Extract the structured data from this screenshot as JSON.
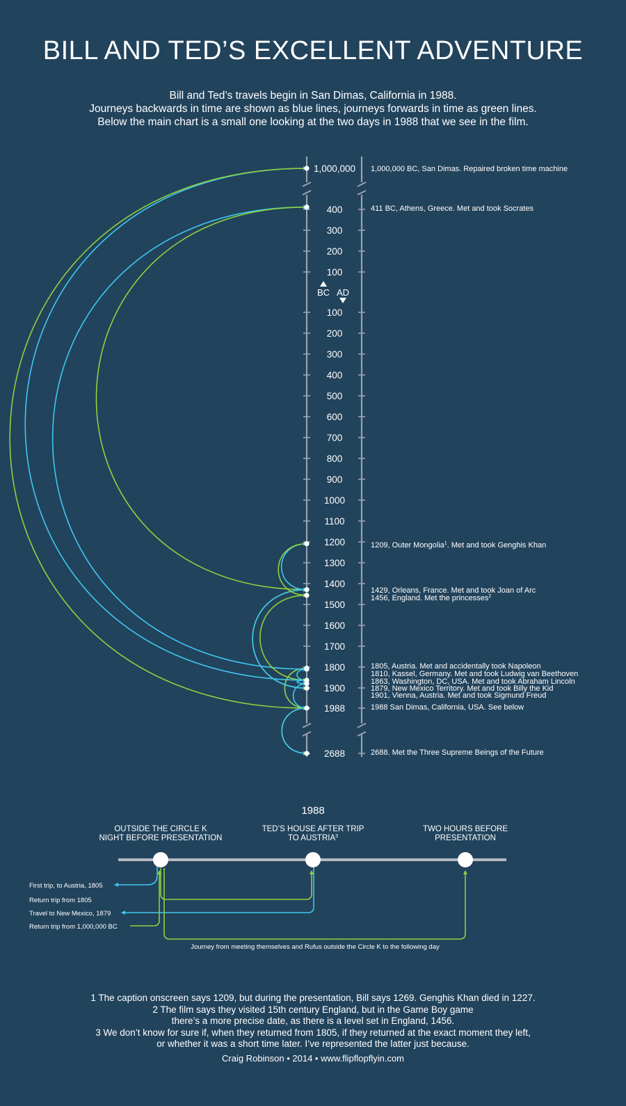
{
  "title": "BILL AND TED’S EXCELLENT ADVENTURE",
  "intro": [
    "Bill and Ted’s travels begin in San Dimas, California in 1988.",
    "Journeys backwards in time are shown as blue lines, journeys forwards in time as green lines.",
    "Below the main chart is a small one looking at the two days in 1988 that we see in the film."
  ],
  "colors": {
    "background": "#22435c",
    "backwards": "#3ec8f0",
    "forwards": "#8fd13f",
    "axis": "#9aa2b0"
  },
  "axis": {
    "top_label": "1,000,000",
    "bc_ticks": [
      "400",
      "300",
      "200",
      "100"
    ],
    "bc_label": "BC",
    "ad_label": "AD",
    "ad_ticks": [
      "100",
      "200",
      "300",
      "400",
      "500",
      "600",
      "700",
      "800",
      "900",
      "1000",
      "1100",
      "1200",
      "1300",
      "1400",
      "1500",
      "1600",
      "1700",
      "1800",
      "1900",
      "1988"
    ],
    "future_label": "2688"
  },
  "stops": [
    {
      "year": -1000000,
      "text": "1,000,000 BC, San Dimas. Repaired broken time machine"
    },
    {
      "year": -411,
      "text": "411 BC, Athens, Greece. Met and took Socrates"
    },
    {
      "year": 1209,
      "text": "1209, Outer Mongolia",
      "note": "1",
      "text2": ". Met and took Genghis Khan"
    },
    {
      "year": 1429,
      "text": "1429, Orleans, France. Met and took Joan of Arc"
    },
    {
      "year": 1456,
      "text": "1456, England. Met the princesses",
      "note": "2"
    },
    {
      "year": 1805,
      "text": "1805, Austria. Met and accidentally took Napoleon"
    },
    {
      "year": 1810,
      "text": "1810, Kassel, Germany. Met and took Ludwig van Beethoven"
    },
    {
      "year": 1863,
      "text": "1863, Washington, DC, USA. Met and took Abraham Lincoln"
    },
    {
      "year": 1879,
      "text": "1879, New Mexico Territory. Met and took Billy the Kid"
    },
    {
      "year": 1901,
      "text": "1901, Vienna, Austria. Met and took Sigmund Freud"
    },
    {
      "year": 1988,
      "text": "1988 San Dimas, California, USA. See below"
    },
    {
      "year": 2688,
      "text": "2688. Met the Three Supreme Beings of the Future"
    }
  ],
  "journeys": [
    {
      "from": 1988,
      "to": 1805,
      "direction": "backwards"
    },
    {
      "from": 1805,
      "to": 1988,
      "direction": "forwards"
    },
    {
      "from": 1988,
      "to": 1879,
      "direction": "backwards"
    },
    {
      "from": 1879,
      "to": 1863,
      "direction": "backwards"
    },
    {
      "from": 1863,
      "to": 1810,
      "direction": "backwards"
    },
    {
      "from": 1810,
      "to": -411,
      "direction": "backwards"
    },
    {
      "from": -411,
      "to": 1429,
      "direction": "forwards"
    },
    {
      "from": 1429,
      "to": 1901,
      "direction": "forwards"
    },
    {
      "from": 1901,
      "to": 1429,
      "direction": "backwards"
    },
    {
      "from": 1429,
      "to": 1209,
      "direction": "backwards"
    },
    {
      "from": 1209,
      "to": 1456,
      "direction": "forwards"
    },
    {
      "from": 1456,
      "to": 1863,
      "direction": "forwards"
    },
    {
      "from": 1863,
      "to": -1000000,
      "direction": "backwards"
    },
    {
      "from": -1000000,
      "to": 1988,
      "direction": "forwards"
    },
    {
      "from": 1988,
      "to": 2688,
      "direction": "forwards"
    },
    {
      "from": 2688,
      "to": 1988,
      "direction": "backwards"
    }
  ],
  "day1988": {
    "title": "1988",
    "points": [
      {
        "lines": [
          "OUTSIDE THE CIRCLE K",
          "NIGHT BEFORE PRESENTATION"
        ]
      },
      {
        "lines": [
          "TED’S HOUSE AFTER TRIP",
          "TO AUSTRIA"
        ],
        "note": "3"
      },
      {
        "lines": [
          "TWO HOURS BEFORE",
          "PRESENTATION"
        ]
      }
    ],
    "trips": [
      {
        "label": "First trip, to Austria, 1805",
        "direction": "backwards"
      },
      {
        "label": "Return trip from 1805",
        "direction": "forwards"
      },
      {
        "label": "Travel to New Mexico, 1879",
        "direction": "backwards"
      },
      {
        "label": "Return trip from 1,000,000 BC",
        "direction": "forwards"
      }
    ],
    "journey_label": "Journey from meeting themselves and Rufus outside the Circle K to the following day"
  },
  "footnotes": [
    "1 The caption onscreen says 1209, but during the presentation, Bill says 1269. Genghis Khan died in 1227.",
    "2 The film says they visited 15th century England, but in the Game Boy game",
    "there’s a more precise date, as there is a level set in England, 1456.",
    "3 We don’t know for sure if, when they returned from 1805, if they returned at the exact moment they left,",
    "or whether it was a short time later. I’ve represented the latter just because."
  ],
  "credit": "Craig Robinson • 2014 • www.flipflopflyin.com"
}
